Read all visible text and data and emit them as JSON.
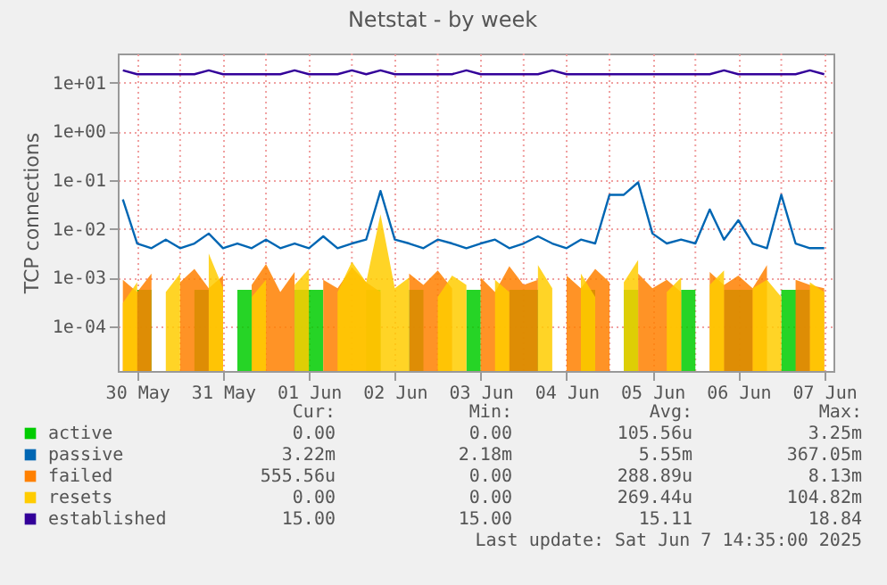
{
  "chart_data": {
    "type": "line",
    "title": "Netstat - by week",
    "ylabel": "TCP connections",
    "x": [
      "2025-05-30T08:00",
      "2025-05-30T12:00",
      "2025-05-30T16:00",
      "2025-05-30T20:00",
      "2025-05-31T00:00",
      "2025-05-31T04:00",
      "2025-05-31T08:00",
      "2025-05-31T12:00",
      "2025-05-31T16:00",
      "2025-05-31T20:00",
      "2025-06-01T00:00",
      "2025-06-01T04:00",
      "2025-06-01T08:00",
      "2025-06-01T12:00",
      "2025-06-01T16:00",
      "2025-06-01T20:00",
      "2025-06-02T00:00",
      "2025-06-02T04:00",
      "2025-06-02T08:00",
      "2025-06-02T12:00",
      "2025-06-02T16:00",
      "2025-06-02T20:00",
      "2025-06-03T00:00",
      "2025-06-03T04:00",
      "2025-06-03T08:00",
      "2025-06-03T12:00",
      "2025-06-03T16:00",
      "2025-06-03T20:00",
      "2025-06-04T00:00",
      "2025-06-04T04:00",
      "2025-06-04T08:00",
      "2025-06-04T12:00",
      "2025-06-04T16:00",
      "2025-06-04T20:00",
      "2025-06-05T00:00",
      "2025-06-05T04:00",
      "2025-06-05T08:00",
      "2025-06-05T12:00",
      "2025-06-05T16:00",
      "2025-06-05T20:00",
      "2025-06-06T00:00",
      "2025-06-06T04:00",
      "2025-06-06T08:00",
      "2025-06-06T12:00",
      "2025-06-06T16:00",
      "2025-06-06T20:00",
      "2025-06-07T00:00",
      "2025-06-07T04:00",
      "2025-06-07T08:00",
      "2025-06-07T12:00"
    ],
    "series": [
      {
        "name": "active",
        "type": "area",
        "color": "#00cc00",
        "values": [
          null,
          0.00056,
          0.00056,
          null,
          null,
          0.00056,
          0.00056,
          null,
          0.00056,
          0.00056,
          null,
          null,
          0.00056,
          0.00056,
          0.00056,
          null,
          null,
          0.00056,
          0.00056,
          null,
          0.00056,
          0.00056,
          null,
          null,
          0.00056,
          0.00056,
          null,
          0.00056,
          0.00056,
          0.00056,
          null,
          null,
          0.00056,
          0.00056,
          null,
          0.00056,
          0.00056,
          null,
          null,
          0.00056,
          0.00056,
          null,
          0.00056,
          0.00056,
          0.00056,
          null,
          0.00056,
          0.00056,
          0.00056,
          null
        ]
      },
      {
        "name": "passive",
        "color": "#0066b3",
        "values": [
          0.04,
          0.005,
          0.004,
          0.006,
          0.004,
          0.005,
          0.008,
          0.004,
          0.005,
          0.004,
          0.006,
          0.004,
          0.005,
          0.004,
          0.007,
          0.004,
          0.005,
          0.006,
          0.06,
          0.006,
          0.005,
          0.004,
          0.006,
          0.005,
          0.004,
          0.005,
          0.006,
          0.004,
          0.005,
          0.007,
          0.005,
          0.004,
          0.006,
          0.005,
          0.05,
          0.05,
          0.09,
          0.008,
          0.005,
          0.006,
          0.005,
          0.025,
          0.006,
          0.015,
          0.005,
          0.004,
          0.05,
          0.005,
          0.004,
          0.004
        ]
      },
      {
        "name": "failed",
        "type": "area",
        "color": "#ff8000",
        "values": [
          0.0009,
          0.0005,
          0.0012,
          null,
          0.0008,
          0.0015,
          0.0006,
          0.0011,
          null,
          0.0007,
          0.0019,
          0.0005,
          0.0013,
          null,
          0.0009,
          0.0006,
          0.0016,
          0.0008,
          0.0005,
          null,
          0.0012,
          0.0007,
          0.0014,
          0.0006,
          null,
          0.001,
          0.0005,
          0.0017,
          0.0007,
          0.0009,
          null,
          0.0011,
          0.0006,
          0.0015,
          0.0008,
          null,
          0.0012,
          0.0006,
          0.0009,
          0.0005,
          null,
          0.0013,
          0.0007,
          0.0011,
          0.0006,
          0.0018,
          null,
          0.0009,
          0.0007,
          0.0006
        ]
      },
      {
        "name": "resets",
        "type": "area",
        "color": "#ffcc00",
        "values": [
          0.0003,
          0.0008,
          null,
          0.0005,
          0.0012,
          null,
          0.0031,
          0.0006,
          null,
          0.0004,
          0.0009,
          null,
          0.0007,
          0.0015,
          null,
          0.0005,
          0.0021,
          0.0008,
          0.02,
          0.0006,
          0.001,
          null,
          0.0004,
          0.0011,
          0.0007,
          null,
          0.0009,
          0.0005,
          null,
          0.0018,
          0.0006,
          null,
          0.0012,
          0.0004,
          null,
          0.0008,
          0.0023,
          null,
          0.0005,
          0.001,
          null,
          0.0007,
          0.0014,
          null,
          0.0006,
          0.0009,
          0.0004,
          null,
          0.0008,
          0.0005
        ]
      },
      {
        "name": "established",
        "color": "#330099",
        "values": [
          18,
          15,
          15,
          15,
          15,
          15,
          18,
          15,
          15,
          15,
          15,
          15,
          18,
          15,
          15,
          15,
          18,
          15,
          18,
          15,
          15,
          15,
          15,
          15,
          18,
          15,
          15,
          15,
          15,
          15,
          18,
          15,
          15,
          15,
          15,
          15,
          15,
          15,
          15,
          15,
          15,
          15,
          18,
          15,
          15,
          15,
          15,
          15,
          18,
          15
        ]
      }
    ],
    "log": "y",
    "ylim": [
      1.2e-05,
      40
    ],
    "yticks": [
      {
        "value": 10,
        "label": "1e+01"
      },
      {
        "value": 1,
        "label": "1e+00"
      },
      {
        "value": 0.1,
        "label": "1e-01"
      },
      {
        "value": 0.01,
        "label": "1e-02"
      },
      {
        "value": 0.001,
        "label": "1e-03"
      },
      {
        "value": 0.0001,
        "label": "1e-04"
      }
    ],
    "xlim": [
      "2025-05-30T06:35",
      "2025-06-07T14:35"
    ],
    "xticks": [
      {
        "value": "2025-05-30T12:00",
        "label": "30 May"
      },
      {
        "value": "2025-05-31T00:00",
        "label": null
      },
      {
        "value": "2025-05-31T12:00",
        "label": "31 May"
      },
      {
        "value": "2025-06-01T00:00",
        "label": null
      },
      {
        "value": "2025-06-01T12:00",
        "label": "01 Jun"
      },
      {
        "value": "2025-06-02T00:00",
        "label": null
      },
      {
        "value": "2025-06-02T12:00",
        "label": "02 Jun"
      },
      {
        "value": "2025-06-03T00:00",
        "label": null
      },
      {
        "value": "2025-06-03T12:00",
        "label": "03 Jun"
      },
      {
        "value": "2025-06-04T00:00",
        "label": null
      },
      {
        "value": "2025-06-04T12:00",
        "label": "04 Jun"
      },
      {
        "value": "2025-06-05T00:00",
        "label": null
      },
      {
        "value": "2025-06-05T12:00",
        "label": "05 Jun"
      },
      {
        "value": "2025-06-06T00:00",
        "label": null
      },
      {
        "value": "2025-06-06T12:00",
        "label": "06 Jun"
      },
      {
        "value": "2025-06-07T00:00",
        "label": null
      },
      {
        "value": "2025-06-07T12:00",
        "label": "07 Jun"
      }
    ],
    "grid": true,
    "legend": "bottom",
    "annotations": [
      "Cur:",
      "Min:",
      "Avg:",
      "Max:",
      "0.00",
      "0.00",
      "105.56u",
      "3.25m",
      "3.22m",
      "2.18m",
      "5.55m",
      "367.05m",
      "555.56u",
      "0.00",
      "288.89u",
      "8.13m",
      "0.00",
      "0.00",
      "269.44u",
      "104.82m",
      "15.00",
      "15.00",
      "15.11",
      "18.84",
      "Last update: Sat Jun  7 14:35:00 2025"
    ]
  }
}
